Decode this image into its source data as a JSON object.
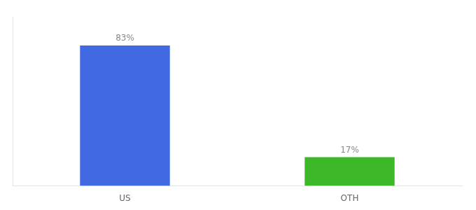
{
  "chart_data": {
    "type": "bar",
    "categories": [
      "US",
      "OTH"
    ],
    "values": [
      83,
      17
    ],
    "value_labels": [
      "83%",
      "17%"
    ],
    "colors": [
      "#4169E1",
      "#3CB828"
    ],
    "ylim": [
      0,
      100
    ],
    "data_labels": true,
    "tick_labels": "x",
    "grid": false
  }
}
